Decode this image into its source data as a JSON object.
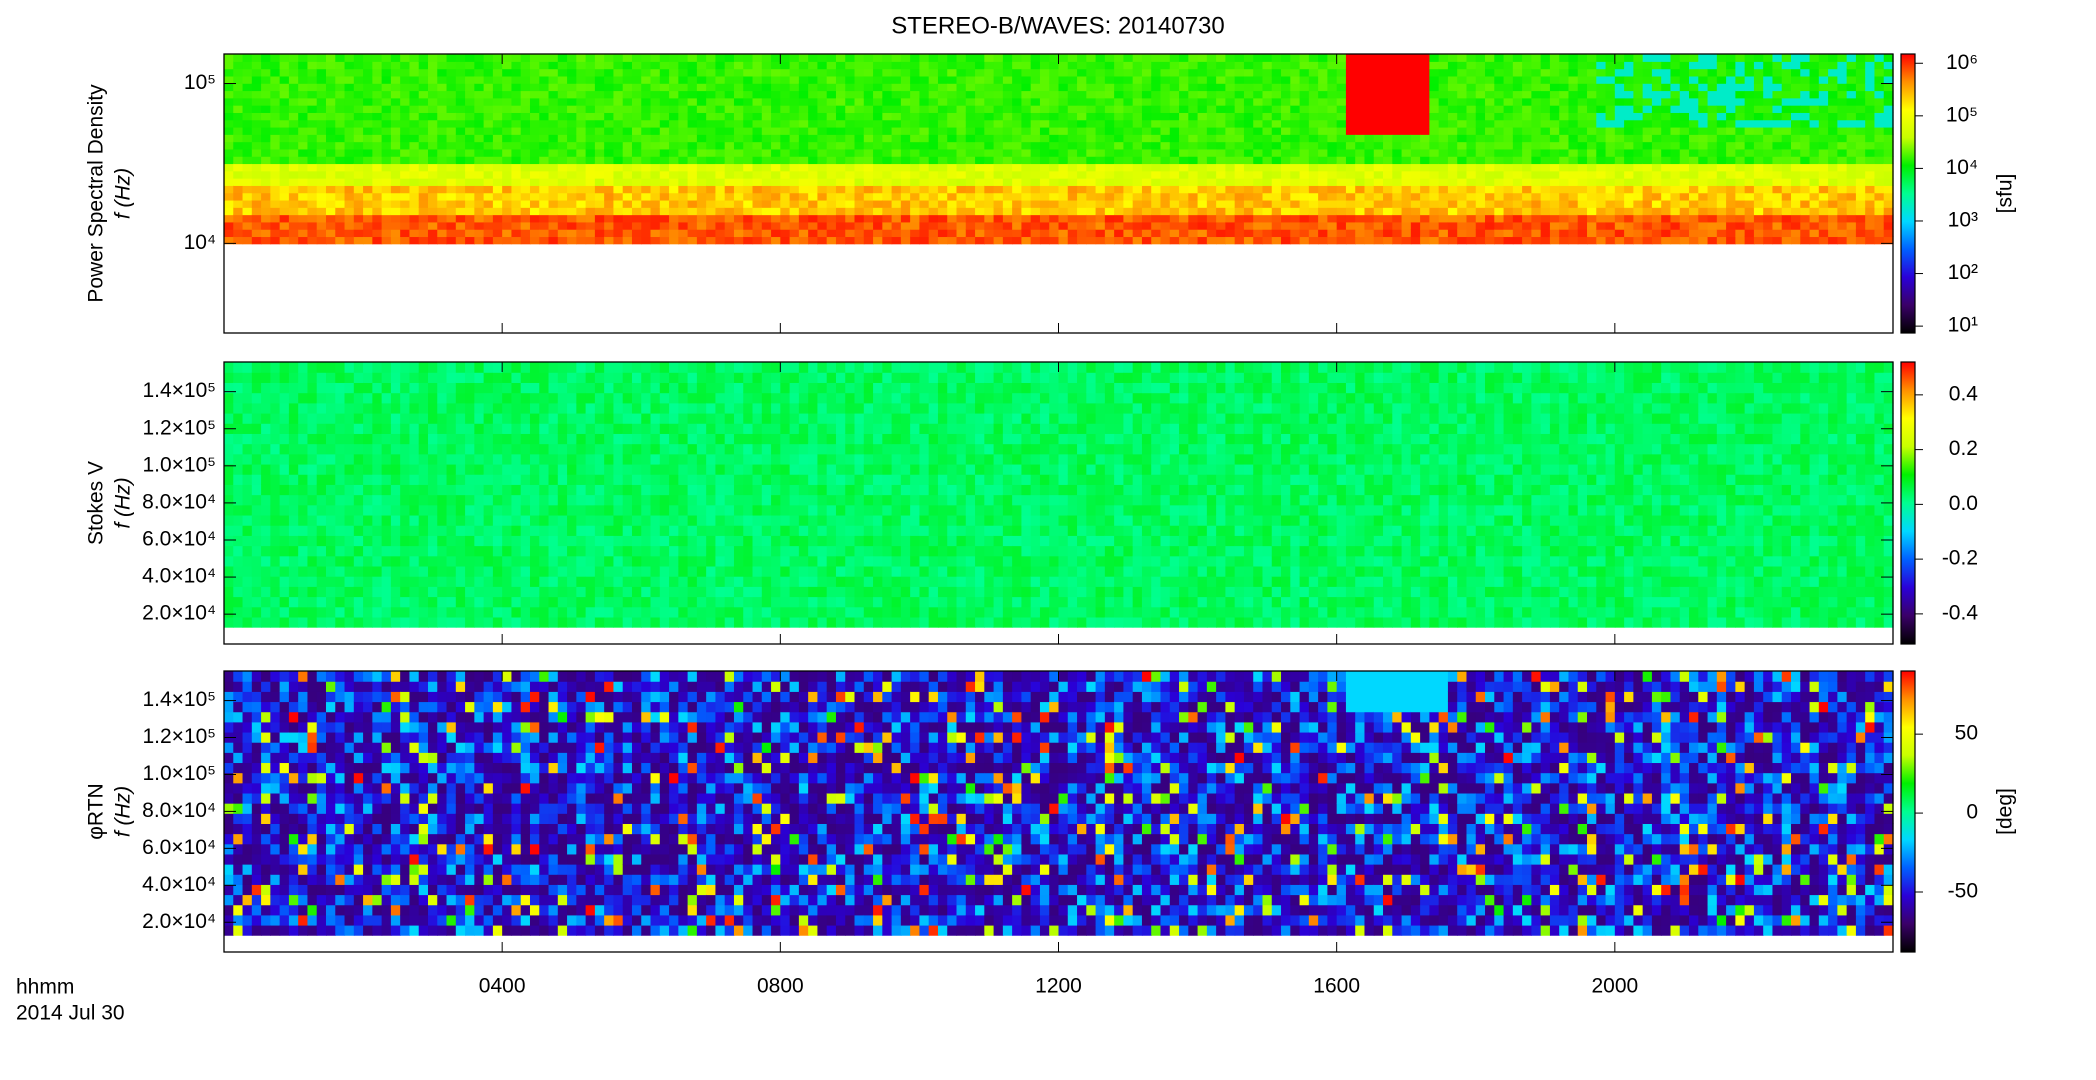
{
  "title": "STEREO-B/WAVES: 20140730",
  "x_axis_label": [
    "hhmm",
    "2014 Jul 30"
  ],
  "colormap": [
    "#000000",
    "#3a0068",
    "#2a00d8",
    "#0060ff",
    "#00d8ff",
    "#00ff90",
    "#00f000",
    "#c8ff00",
    "#ffff00",
    "#ff9000",
    "#ff0000"
  ],
  "chart_data": [
    {
      "type": "heatmap",
      "ylabel": [
        "Power Spectral Density",
        "f (Hz)"
      ],
      "xlim": [
        0,
        24
      ],
      "xticks": [
        {
          "value": 4,
          "label": "0400"
        },
        {
          "value": 8,
          "label": "0800"
        },
        {
          "value": 12,
          "label": "1200"
        },
        {
          "value": 16,
          "label": "1600"
        },
        {
          "value": 20,
          "label": "2000"
        }
      ],
      "log_y": true,
      "ylim": [
        2750,
        153000
      ],
      "yticks": [
        {
          "value": 10000,
          "label": "10⁴"
        },
        {
          "value": 100000,
          "label": "10⁵"
        }
      ],
      "colorbar": {
        "label": "[sfu]",
        "log": true,
        "zlim": [
          7.4,
          1500000
        ],
        "ticks": [
          {
            "value": 10,
            "label": "10¹"
          },
          {
            "value": 100,
            "label": "10²"
          },
          {
            "value": 1000,
            "label": "10³"
          },
          {
            "value": 10000,
            "label": "10⁴"
          },
          {
            "value": 100000,
            "label": "10⁵"
          },
          {
            "value": 1000000,
            "label": "10⁶"
          }
        ]
      }
    },
    {
      "type": "heatmap",
      "ylabel": [
        "Stokes V",
        "f (Hz)"
      ],
      "xlim": [
        0,
        24
      ],
      "xticks": [
        {
          "value": 4,
          "label": "0400"
        },
        {
          "value": 8,
          "label": "0800"
        },
        {
          "value": 12,
          "label": "1200"
        },
        {
          "value": 16,
          "label": "1600"
        },
        {
          "value": 20,
          "label": "2000"
        }
      ],
      "log_y": false,
      "ylim": [
        3900,
        156000
      ],
      "yticks": [
        {
          "value": 20000,
          "label": "2.0×10⁴"
        },
        {
          "value": 40000,
          "label": "4.0×10⁴"
        },
        {
          "value": 60000,
          "label": "6.0×10⁴"
        },
        {
          "value": 80000,
          "label": "8.0×10⁴"
        },
        {
          "value": 100000,
          "label": "1.0×10⁵"
        },
        {
          "value": 120000,
          "label": "1.2×10⁵"
        },
        {
          "value": 140000,
          "label": "1.4×10⁵"
        }
      ],
      "colorbar": {
        "label": "",
        "log": false,
        "zlim": [
          -0.51,
          0.52
        ],
        "ticks": [
          -0.4,
          -0.2,
          {
            "value": 0,
            "label": "0.0"
          },
          0.2,
          0.4
        ]
      }
    },
    {
      "type": "heatmap",
      "ylabel": [
        "φRTN",
        "f (Hz)"
      ],
      "xlim": [
        0,
        24
      ],
      "xticks": [
        {
          "value": 4,
          "label": "0400"
        },
        {
          "value": 8,
          "label": "0800"
        },
        {
          "value": 12,
          "label": "1200"
        },
        {
          "value": 16,
          "label": "1600"
        },
        {
          "value": 20,
          "label": "2000"
        }
      ],
      "log_y": false,
      "ylim": [
        3900,
        156000
      ],
      "yticks": [
        {
          "value": 20000,
          "label": "2.0×10⁴"
        },
        {
          "value": 40000,
          "label": "4.0×10⁴"
        },
        {
          "value": 60000,
          "label": "6.0×10⁴"
        },
        {
          "value": 80000,
          "label": "8.0×10⁴"
        },
        {
          "value": 100000,
          "label": "1.0×10⁵"
        },
        {
          "value": 120000,
          "label": "1.2×10⁵"
        },
        {
          "value": 140000,
          "label": "1.4×10⁵"
        }
      ],
      "colorbar": {
        "label": "[deg]",
        "log": false,
        "zlim": [
          -88,
          90
        ],
        "ticks": [
          -50,
          0,
          50
        ]
      }
    }
  ]
}
